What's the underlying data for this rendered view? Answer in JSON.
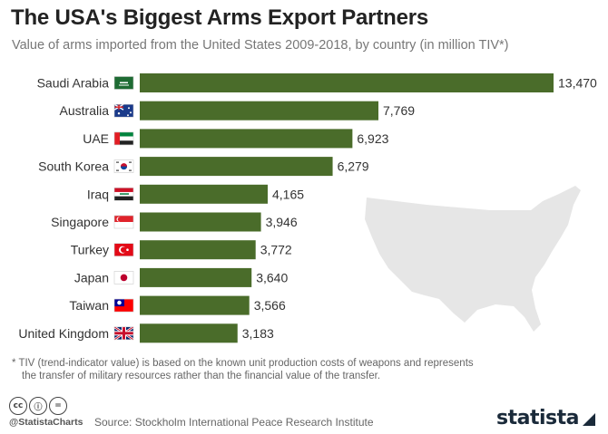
{
  "header": {
    "title": "The USA's Biggest Arms Export Partners",
    "subtitle": "Value of arms imported from the United States 2009-2018, by country (in million TIV*)"
  },
  "chart_data": {
    "type": "bar",
    "orientation": "horizontal",
    "categories": [
      "Saudi Arabia",
      "Australia",
      "UAE",
      "South Korea",
      "Iraq",
      "Singapore",
      "Turkey",
      "Japan",
      "Taiwan",
      "United Kingdom"
    ],
    "values": [
      13470,
      7769,
      6923,
      6279,
      4165,
      3946,
      3772,
      3640,
      3566,
      3183
    ],
    "value_labels": [
      "13,470",
      "7,769",
      "6,923",
      "6,279",
      "4,165",
      "3,946",
      "3,772",
      "3,640",
      "3,566",
      "3,183"
    ],
    "flags": [
      "saudi-arabia",
      "australia",
      "uae",
      "south-korea",
      "iraq",
      "singapore",
      "turkey",
      "japan",
      "taiwan",
      "united-kingdom"
    ],
    "xlim": [
      0,
      13470
    ],
    "bar_color": "#4a6c2a",
    "grid": false,
    "legend": "none",
    "background_map": "usa-silhouette"
  },
  "footnote": {
    "line1": "* TIV (trend-indicator value) is based on the known unit production costs of weapons and represents",
    "line2": "the transfer of military resources rather than the financial value of the transfer."
  },
  "footer": {
    "handle": "@StatistaCharts",
    "source": "Source: Stockholm International Peace Research Institute",
    "brand": "statista",
    "cc_icons": [
      "cc-icon",
      "by-icon",
      "nd-icon"
    ]
  },
  "colors": {
    "bar": "#4a6c2a",
    "map": "#e6e6e6",
    "title": "#222222",
    "subtitle": "#777777"
  }
}
